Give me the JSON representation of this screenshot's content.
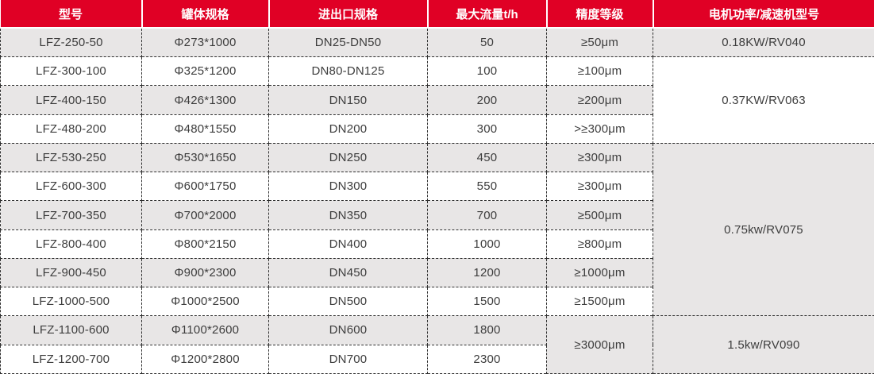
{
  "table": {
    "columns": [
      {
        "label": "型号"
      },
      {
        "label": "罐体规格"
      },
      {
        "label": "进出口规格"
      },
      {
        "label": "最大流量t/h"
      },
      {
        "label": "精度等级"
      },
      {
        "label": "电机功率/减速机型号"
      }
    ],
    "rows": [
      {
        "model": "LFZ-250-50",
        "tank": "Φ273*1000",
        "port": "DN25-DN50",
        "flow": "50",
        "precision": "≥50μm",
        "motor": "0.18KW/RV040"
      },
      {
        "model": "LFZ-300-100",
        "tank": "Φ325*1200",
        "port": "DN80-DN125",
        "flow": "100",
        "precision": "≥100μm",
        "motor": "0.37KW/RV063"
      },
      {
        "model": "LFZ-400-150",
        "tank": "Φ426*1300",
        "port": "DN150",
        "flow": "200",
        "precision": "≥200μm"
      },
      {
        "model": "LFZ-480-200",
        "tank": "Φ480*1550",
        "port": "DN200",
        "flow": "300",
        "precision": ">≥300μm"
      },
      {
        "model": "LFZ-530-250",
        "tank": "Φ530*1650",
        "port": "DN250",
        "flow": "450",
        "precision": "≥300μm",
        "motor": "0.75kw/RV075"
      },
      {
        "model": "LFZ-600-300",
        "tank": "Φ600*1750",
        "port": "DN300",
        "flow": "550",
        "precision": "≥300μm"
      },
      {
        "model": "LFZ-700-350",
        "tank": "Φ700*2000",
        "port": "DN350",
        "flow": "700",
        "precision": "≥500μm"
      },
      {
        "model": "LFZ-800-400",
        "tank": "Φ800*2150",
        "port": "DN400",
        "flow": "1000",
        "precision": "≥800μm"
      },
      {
        "model": "LFZ-900-450",
        "tank": "Φ900*2300",
        "port": "DN450",
        "flow": "1200",
        "precision": "≥1000μm"
      },
      {
        "model": "LFZ-1000-500",
        "tank": "Φ1000*2500",
        "port": "DN500",
        "flow": "1500",
        "precision": "≥1500μm"
      },
      {
        "model": "LFZ-1100-600",
        "tank": "Φ1100*2600",
        "port": "DN600",
        "flow": "1800",
        "precision": "≥3000μm",
        "motor": "1.5kw/RV090"
      },
      {
        "model": "LFZ-1200-700",
        "tank": "Φ1200*2800",
        "port": "DN700",
        "flow": "2300"
      }
    ],
    "colors": {
      "header_bg": "#e00025",
      "header_text": "#ffffff",
      "row_alt_bg": "#e8e6e6",
      "row_bg": "#ffffff",
      "cell_text": "#3d3d3d",
      "border": "#2f2f2f"
    }
  }
}
